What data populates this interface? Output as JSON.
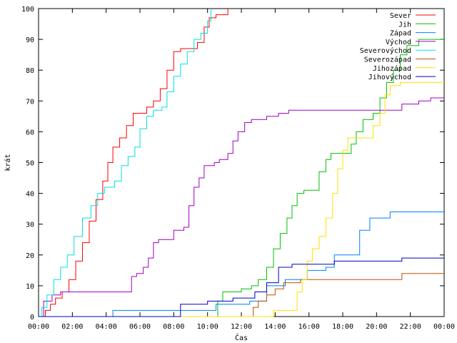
{
  "chart_data": {
    "type": "line",
    "title": "",
    "xlabel": "Čas",
    "ylabel": "krát",
    "ylim": [
      0,
      100
    ],
    "xlim_hours": [
      0,
      24
    ],
    "grid": false,
    "legend_position": "top-right",
    "x_ticks": [
      {
        "hour": 0,
        "label": "00:00"
      },
      {
        "hour": 2,
        "label": "02:00"
      },
      {
        "hour": 4,
        "label": "04:00"
      },
      {
        "hour": 6,
        "label": "06:00"
      },
      {
        "hour": 8,
        "label": "08:00"
      },
      {
        "hour": 10,
        "label": "10:00"
      },
      {
        "hour": 12,
        "label": "12:00"
      },
      {
        "hour": 14,
        "label": "14:00"
      },
      {
        "hour": 16,
        "label": "16:00"
      },
      {
        "hour": 18,
        "label": "18:00"
      },
      {
        "hour": 20,
        "label": "20:00"
      },
      {
        "hour": 22,
        "label": "22:00"
      },
      {
        "hour": 24,
        "label": "00:00"
      }
    ],
    "y_ticks": [
      0,
      10,
      20,
      30,
      40,
      50,
      60,
      70,
      80,
      90,
      100
    ],
    "series": [
      {
        "name": "Sever",
        "color": "#ff0000",
        "points": [
          [
            0,
            0
          ],
          [
            0.4,
            2
          ],
          [
            0.7,
            4
          ],
          [
            1.0,
            6
          ],
          [
            1.4,
            8
          ],
          [
            1.8,
            12
          ],
          [
            2.2,
            18
          ],
          [
            2.6,
            24
          ],
          [
            3.0,
            31
          ],
          [
            3.4,
            38
          ],
          [
            3.8,
            44
          ],
          [
            4.1,
            50
          ],
          [
            4.4,
            55
          ],
          [
            4.8,
            58
          ],
          [
            5.2,
            62
          ],
          [
            5.6,
            66
          ],
          [
            6.0,
            66
          ],
          [
            6.4,
            68
          ],
          [
            6.8,
            70
          ],
          [
            7.2,
            74
          ],
          [
            7.6,
            80
          ],
          [
            8.0,
            86
          ],
          [
            8.4,
            87
          ],
          [
            9.0,
            87
          ],
          [
            9.4,
            89
          ],
          [
            9.8,
            94
          ],
          [
            10.1,
            97
          ],
          [
            10.5,
            98
          ],
          [
            11.0,
            98
          ],
          [
            11.2,
            100
          ]
        ]
      },
      {
        "name": "Jih",
        "color": "#00c000",
        "points": [
          [
            0,
            0
          ],
          [
            10.3,
            0
          ],
          [
            10.6,
            5
          ],
          [
            10.9,
            8
          ],
          [
            11.5,
            8
          ],
          [
            12.0,
            9
          ],
          [
            12.6,
            10
          ],
          [
            13.0,
            12
          ],
          [
            13.5,
            16
          ],
          [
            13.9,
            22
          ],
          [
            14.3,
            27
          ],
          [
            14.7,
            32
          ],
          [
            15.0,
            36
          ],
          [
            15.3,
            40
          ],
          [
            15.7,
            41
          ],
          [
            16.3,
            41
          ],
          [
            16.6,
            47
          ],
          [
            17.0,
            51
          ],
          [
            17.3,
            53
          ],
          [
            18.2,
            53
          ],
          [
            18.5,
            56
          ],
          [
            18.8,
            60
          ],
          [
            19.2,
            64
          ],
          [
            19.8,
            66
          ],
          [
            20.2,
            71
          ],
          [
            20.6,
            76
          ],
          [
            21.0,
            80
          ],
          [
            21.4,
            85
          ],
          [
            21.8,
            88
          ],
          [
            22.5,
            90
          ],
          [
            24,
            90
          ]
        ]
      },
      {
        "name": "Západ",
        "color": "#0080ff",
        "points": [
          [
            0,
            0
          ],
          [
            4.3,
            0
          ],
          [
            4.4,
            2
          ],
          [
            10.4,
            2
          ],
          [
            10.5,
            4
          ],
          [
            12.5,
            5
          ],
          [
            13.5,
            10
          ],
          [
            14.6,
            12
          ],
          [
            15.9,
            15
          ],
          [
            17.0,
            16
          ],
          [
            17.5,
            20
          ],
          [
            18.5,
            20
          ],
          [
            19.0,
            28
          ],
          [
            19.6,
            32
          ],
          [
            20.5,
            32
          ],
          [
            20.8,
            34
          ],
          [
            24,
            34
          ]
        ]
      },
      {
        "name": "Východ",
        "color": "#a000c0",
        "points": [
          [
            0,
            0
          ],
          [
            0.3,
            5
          ],
          [
            0.8,
            7
          ],
          [
            1.3,
            8
          ],
          [
            5.3,
            8
          ],
          [
            5.5,
            13
          ],
          [
            5.8,
            14
          ],
          [
            6.2,
            16
          ],
          [
            6.5,
            19
          ],
          [
            6.8,
            24
          ],
          [
            7.1,
            25
          ],
          [
            7.8,
            25
          ],
          [
            8.0,
            28
          ],
          [
            8.6,
            29
          ],
          [
            8.9,
            36
          ],
          [
            9.2,
            42
          ],
          [
            9.5,
            45
          ],
          [
            9.8,
            49
          ],
          [
            10.4,
            50
          ],
          [
            10.7,
            51
          ],
          [
            11.2,
            53
          ],
          [
            11.5,
            57
          ],
          [
            11.8,
            60
          ],
          [
            12.2,
            63
          ],
          [
            12.6,
            64
          ],
          [
            13.5,
            65
          ],
          [
            14.2,
            66
          ],
          [
            14.8,
            67
          ],
          [
            21.0,
            67
          ],
          [
            21.5,
            69
          ],
          [
            22.5,
            70
          ],
          [
            23.2,
            71
          ],
          [
            24,
            71
          ]
        ]
      },
      {
        "name": "Severovýchod",
        "color": "#00e0e0",
        "points": [
          [
            0,
            0
          ],
          [
            0.2,
            3
          ],
          [
            0.5,
            7
          ],
          [
            0.9,
            12
          ],
          [
            1.3,
            16
          ],
          [
            1.7,
            20
          ],
          [
            2.1,
            26
          ],
          [
            2.6,
            32
          ],
          [
            3.1,
            36
          ],
          [
            3.5,
            40
          ],
          [
            3.9,
            42
          ],
          [
            4.5,
            44
          ],
          [
            4.9,
            49
          ],
          [
            5.3,
            52
          ],
          [
            5.7,
            55
          ],
          [
            6.0,
            61
          ],
          [
            6.4,
            65
          ],
          [
            6.8,
            67
          ],
          [
            7.3,
            68
          ],
          [
            7.6,
            73
          ],
          [
            8.0,
            78
          ],
          [
            8.4,
            82
          ],
          [
            8.8,
            86
          ],
          [
            9.2,
            90
          ],
          [
            9.6,
            92
          ],
          [
            10.0,
            96
          ],
          [
            10.2,
            100
          ]
        ]
      },
      {
        "name": "Severozápad",
        "color": "#c05000",
        "points": [
          [
            0,
            0
          ],
          [
            12.6,
            0
          ],
          [
            12.7,
            3
          ],
          [
            13.0,
            5
          ],
          [
            13.5,
            7
          ],
          [
            14.0,
            9
          ],
          [
            14.5,
            11
          ],
          [
            15.5,
            12
          ],
          [
            17.5,
            12
          ],
          [
            18.5,
            12
          ],
          [
            21.0,
            12
          ],
          [
            21.5,
            14
          ],
          [
            24,
            14
          ]
        ]
      },
      {
        "name": "Jihozápad",
        "color": "#ffe000",
        "points": [
          [
            0,
            0
          ],
          [
            13.7,
            0
          ],
          [
            13.9,
            2
          ],
          [
            15.0,
            2
          ],
          [
            15.3,
            8
          ],
          [
            15.6,
            12
          ],
          [
            15.9,
            18
          ],
          [
            16.2,
            22
          ],
          [
            16.6,
            26
          ],
          [
            17.0,
            32
          ],
          [
            17.4,
            40
          ],
          [
            17.7,
            48
          ],
          [
            18.0,
            54
          ],
          [
            18.3,
            58
          ],
          [
            19.5,
            58
          ],
          [
            19.8,
            62
          ],
          [
            20.2,
            66
          ],
          [
            20.5,
            72
          ],
          [
            20.8,
            75
          ],
          [
            21.4,
            76
          ],
          [
            24,
            76
          ]
        ]
      },
      {
        "name": "Jihovýchod",
        "color": "#0000c0",
        "points": [
          [
            0,
            0
          ],
          [
            8.3,
            0
          ],
          [
            8.4,
            4
          ],
          [
            9.0,
            4
          ],
          [
            10.0,
            5
          ],
          [
            11.5,
            6
          ],
          [
            12.8,
            8
          ],
          [
            13.5,
            11
          ],
          [
            14.2,
            16
          ],
          [
            15.0,
            17
          ],
          [
            17.0,
            17
          ],
          [
            17.5,
            18
          ],
          [
            18.0,
            18
          ],
          [
            21.0,
            18
          ],
          [
            21.5,
            19
          ],
          [
            24,
            19
          ]
        ]
      }
    ]
  }
}
